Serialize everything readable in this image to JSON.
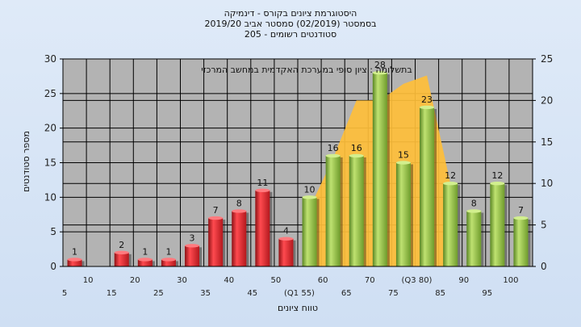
{
  "title_lines": [
    "היסטוגרמת ציונים בקורס - דינמיקה",
    "בסמסטר  (02/2019)  סמסטר אביב 2019/20",
    "סטודנטים רשומים - 205"
  ],
  "chart_data": {
    "type": "bar",
    "annotation": "בתשלומה : ציון סופי במערכת האקדמית במחשב המרכזי",
    "ylabel": "מספר סטודנטים",
    "xlabel": "טווח ציונים",
    "ylim_left": [
      0,
      30
    ],
    "ylim_right": [
      0,
      25
    ],
    "yticks_left": [
      "0",
      "5",
      "10",
      "15",
      "20",
      "25",
      "30"
    ],
    "yticks_right": [
      "0",
      "5",
      "10",
      "15",
      "20",
      "25"
    ],
    "categories": [
      "5",
      "10",
      "15",
      "20",
      "25",
      "30",
      "35",
      "40",
      "45",
      "50",
      "55",
      "60",
      "65",
      "70",
      "75",
      "80",
      "85",
      "90",
      "95",
      "100"
    ],
    "x_tick_labels_lower": [
      "5",
      "15",
      "25",
      "35",
      "45",
      "(Q1 55)",
      "65",
      "75",
      "85",
      "95"
    ],
    "x_tick_labels_upper": [
      "10",
      "20",
      "30",
      "40",
      "50",
      "60",
      "70",
      "(Q3 80)",
      "90",
      "100"
    ],
    "series": [
      {
        "values": [
          1,
          0,
          2,
          1,
          1,
          3,
          7,
          8,
          11,
          4,
          10,
          16,
          16,
          28,
          15,
          23,
          12,
          8,
          12,
          7
        ],
        "labels": [
          "1",
          "",
          "2",
          "1",
          "1",
          "3",
          "7",
          "8",
          "11",
          "4",
          "10",
          "16",
          "16",
          "28",
          "15",
          "23",
          "12",
          "8",
          "12",
          "7"
        ]
      },
      {
        "values": [
          null,
          null,
          null,
          null,
          null,
          null,
          null,
          null,
          null,
          null,
          7,
          13,
          20,
          20,
          22,
          23,
          10,
          null,
          null,
          null
        ]
      }
    ],
    "colors": {
      "fail": "#d8262d",
      "pass": "#8cbf3f",
      "area": "#ffbf3a",
      "plot_bg": "#b3b3b3"
    },
    "grid": true
  }
}
